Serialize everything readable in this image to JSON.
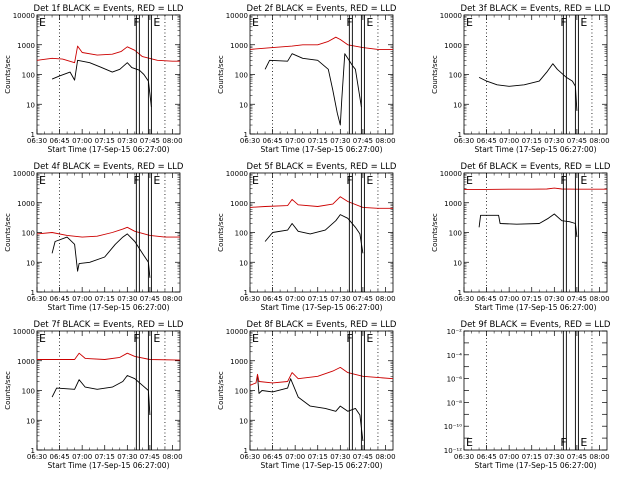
{
  "figure": {
    "xticks": [
      "06:30",
      "06:45",
      "07:00",
      "07:15",
      "07:30",
      "07:45",
      "08:00"
    ],
    "xlabel": "Start Time (17-Sep-15 06:27:00)",
    "ylabel": "Counts/sec",
    "markers": {
      "F": "F",
      "E": "E"
    },
    "colors": {
      "events": "#000000",
      "lld": "#cc0000"
    }
  },
  "chart_data": [
    {
      "type": "line",
      "title": "Det 1f BLACK = Events, RED = LLD",
      "xlabel": "Start Time (17-Sep-15 06:27:00)",
      "ylabel": "Counts/sec",
      "yscale": "log",
      "ylim": [
        1,
        10000
      ],
      "xlim": [
        "06:30",
        "08:05"
      ],
      "yticks": [
        "1",
        "10",
        "100",
        "1000",
        "10000"
      ],
      "series": [
        {
          "name": "Events",
          "color": "#000000",
          "points": [
            [
              "06:40",
              70
            ],
            [
              "06:45",
              90
            ],
            [
              "06:52",
              120
            ],
            [
              "06:55",
              65
            ],
            [
              "06:57",
              300
            ],
            [
              "07:05",
              250
            ],
            [
              "07:12",
              180
            ],
            [
              "07:20",
              120
            ],
            [
              "07:25",
              150
            ],
            [
              "07:30",
              250
            ],
            [
              "07:33",
              170
            ],
            [
              "07:38",
              140
            ],
            [
              "07:41",
              100
            ],
            [
              "07:44",
              60
            ],
            [
              "07:46",
              8
            ]
          ]
        },
        {
          "name": "LLD",
          "color": "#cc0000",
          "points": [
            [
              "06:30",
              300
            ],
            [
              "06:40",
              350
            ],
            [
              "06:47",
              330
            ],
            [
              "06:55",
              250
            ],
            [
              "06:57",
              900
            ],
            [
              "07:00",
              550
            ],
            [
              "07:10",
              450
            ],
            [
              "07:20",
              480
            ],
            [
              "07:26",
              600
            ],
            [
              "07:30",
              850
            ],
            [
              "07:35",
              650
            ],
            [
              "07:40",
              400
            ],
            [
              "07:50",
              300
            ],
            [
              "08:00",
              280
            ],
            [
              "08:05",
              280
            ]
          ]
        }
      ]
    },
    {
      "type": "line",
      "title": "Det 2f BLACK = Events, RED = LLD",
      "xlabel": "Start Time (17-Sep-15 06:27:00)",
      "ylabel": "Counts/sec",
      "yscale": "log",
      "ylim": [
        1,
        10000
      ],
      "xlim": [
        "06:30",
        "08:05"
      ],
      "yticks": [
        "1",
        "10",
        "100",
        "1000",
        "10000"
      ],
      "series": [
        {
          "name": "Events",
          "color": "#000000",
          "points": [
            [
              "06:40",
              150
            ],
            [
              "06:43",
              300
            ],
            [
              "06:55",
              280
            ],
            [
              "06:58",
              500
            ],
            [
              "07:05",
              350
            ],
            [
              "07:15",
              300
            ],
            [
              "07:22",
              150
            ],
            [
              "07:25",
              30
            ],
            [
              "07:28",
              5
            ],
            [
              "07:30",
              2
            ],
            [
              "07:31",
              15
            ],
            [
              "07:33",
              500
            ],
            [
              "07:38",
              200
            ],
            [
              "07:40",
              150
            ],
            [
              "07:44",
              8
            ]
          ]
        },
        {
          "name": "LLD",
          "color": "#cc0000",
          "points": [
            [
              "06:30",
              700
            ],
            [
              "06:45",
              800
            ],
            [
              "06:58",
              900
            ],
            [
              "07:05",
              1000
            ],
            [
              "07:15",
              1000
            ],
            [
              "07:22",
              1300
            ],
            [
              "07:27",
              1800
            ],
            [
              "07:30",
              1500
            ],
            [
              "07:35",
              1000
            ],
            [
              "07:45",
              800
            ],
            [
              "07:55",
              700
            ],
            [
              "08:05",
              700
            ]
          ]
        }
      ]
    },
    {
      "type": "line",
      "title": "Det 3f BLACK = Events, RED = LLD",
      "xlabel": "Start Time (17-Sep-15 06:27:00)",
      "ylabel": "Counts/sec",
      "yscale": "log",
      "ylim": [
        1,
        10000
      ],
      "xlim": [
        "06:30",
        "08:05"
      ],
      "yticks": [
        "1",
        "10",
        "100",
        "1000",
        "10000"
      ],
      "series": [
        {
          "name": "Events",
          "color": "#000000",
          "points": [
            [
              "06:40",
              80
            ],
            [
              "06:45",
              60
            ],
            [
              "06:52",
              45
            ],
            [
              "07:00",
              40
            ],
            [
              "07:10",
              45
            ],
            [
              "07:20",
              60
            ],
            [
              "07:25",
              120
            ],
            [
              "07:29",
              230
            ],
            [
              "07:32",
              150
            ],
            [
              "07:38",
              80
            ],
            [
              "07:42",
              60
            ],
            [
              "07:44",
              40
            ],
            [
              "07:45",
              6
            ]
          ]
        }
      ]
    },
    {
      "type": "line",
      "title": "Det 4f BLACK = Events, RED = LLD",
      "xlabel": "Start Time (17-Sep-15 06:27:00)",
      "ylabel": "Counts/sec",
      "yscale": "log",
      "ylim": [
        1,
        10000
      ],
      "xlim": [
        "06:30",
        "08:05"
      ],
      "yticks": [
        "1",
        "10",
        "100",
        "1000",
        "10000"
      ],
      "series": [
        {
          "name": "Events",
          "color": "#000000",
          "points": [
            [
              "06:40",
              20
            ],
            [
              "06:42",
              50
            ],
            [
              "06:50",
              70
            ],
            [
              "06:55",
              40
            ],
            [
              "06:57",
              5
            ],
            [
              "06:58",
              9
            ],
            [
              "07:05",
              10
            ],
            [
              "07:15",
              15
            ],
            [
              "07:22",
              40
            ],
            [
              "07:27",
              70
            ],
            [
              "07:30",
              90
            ],
            [
              "07:35",
              50
            ],
            [
              "07:40",
              20
            ],
            [
              "07:44",
              10
            ],
            [
              "07:45",
              3
            ]
          ]
        },
        {
          "name": "LLD",
          "color": "#cc0000",
          "points": [
            [
              "06:30",
              90
            ],
            [
              "06:40",
              100
            ],
            [
              "06:50",
              80
            ],
            [
              "07:00",
              70
            ],
            [
              "07:10",
              75
            ],
            [
              "07:20",
              100
            ],
            [
              "07:27",
              130
            ],
            [
              "07:30",
              150
            ],
            [
              "07:35",
              110
            ],
            [
              "07:45",
              80
            ],
            [
              "07:55",
              70
            ],
            [
              "08:05",
              70
            ]
          ]
        }
      ]
    },
    {
      "type": "line",
      "title": "Det 5f BLACK = Events, RED = LLD",
      "xlabel": "Start Time (17-Sep-15 06:27:00)",
      "ylabel": "Counts/sec",
      "yscale": "log",
      "ylim": [
        1,
        10000
      ],
      "xlim": [
        "06:30",
        "08:05"
      ],
      "yticks": [
        "1",
        "10",
        "100",
        "1000",
        "10000"
      ],
      "series": [
        {
          "name": "Events",
          "color": "#000000",
          "points": [
            [
              "06:40",
              50
            ],
            [
              "06:45",
              100
            ],
            [
              "06:55",
              120
            ],
            [
              "06:58",
              200
            ],
            [
              "07:02",
              110
            ],
            [
              "07:10",
              90
            ],
            [
              "07:20",
              120
            ],
            [
              "07:27",
              250
            ],
            [
              "07:30",
              400
            ],
            [
              "07:35",
              300
            ],
            [
              "07:40",
              150
            ],
            [
              "07:43",
              90
            ],
            [
              "07:45",
              20
            ]
          ]
        },
        {
          "name": "LLD",
          "color": "#cc0000",
          "points": [
            [
              "06:30",
              700
            ],
            [
              "06:40",
              750
            ],
            [
              "06:55",
              800
            ],
            [
              "06:58",
              1300
            ],
            [
              "07:02",
              850
            ],
            [
              "07:15",
              750
            ],
            [
              "07:25",
              900
            ],
            [
              "07:30",
              1600
            ],
            [
              "07:35",
              1100
            ],
            [
              "07:45",
              700
            ],
            [
              "07:55",
              650
            ],
            [
              "08:05",
              650
            ]
          ]
        }
      ]
    },
    {
      "type": "line",
      "title": "Det 6f BLACK = Events, RED = LLD",
      "xlabel": "Start Time (17-Sep-15 06:27:00)",
      "ylabel": "Counts/sec",
      "yscale": "log",
      "ylim": [
        1,
        10000
      ],
      "xlim": [
        "06:30",
        "08:05"
      ],
      "yticks": [
        "1",
        "10",
        "100",
        "1000",
        "10000"
      ],
      "series": [
        {
          "name": "Events",
          "color": "#000000",
          "points": [
            [
              "06:40",
              150
            ],
            [
              "06:41",
              380
            ],
            [
              "06:53",
              380
            ],
            [
              "06:54",
              200
            ],
            [
              "07:05",
              190
            ],
            [
              "07:20",
              200
            ],
            [
              "07:26",
              300
            ],
            [
              "07:30",
              420
            ],
            [
              "07:35",
              250
            ],
            [
              "07:40",
              230
            ],
            [
              "07:44",
              200
            ],
            [
              "07:45",
              70
            ]
          ]
        },
        {
          "name": "LLD",
          "color": "#cc0000",
          "points": [
            [
              "06:30",
              2800
            ],
            [
              "06:45",
              2800
            ],
            [
              "07:00",
              2850
            ],
            [
              "07:15",
              2850
            ],
            [
              "07:25",
              2900
            ],
            [
              "07:30",
              3100
            ],
            [
              "07:35",
              2900
            ],
            [
              "07:45",
              2850
            ],
            [
              "08:05",
              2850
            ]
          ]
        }
      ]
    },
    {
      "type": "line",
      "title": "Det 7f BLACK = Events, RED = LLD",
      "xlabel": "Start Time (17-Sep-15 06:27:00)",
      "ylabel": "Counts/sec",
      "yscale": "log",
      "ylim": [
        1,
        10000
      ],
      "xlim": [
        "06:30",
        "08:05"
      ],
      "yticks": [
        "1",
        "10",
        "100",
        "1000",
        "10000"
      ],
      "series": [
        {
          "name": "Events",
          "color": "#000000",
          "points": [
            [
              "06:40",
              60
            ],
            [
              "06:43",
              120
            ],
            [
              "06:55",
              110
            ],
            [
              "06:58",
              230
            ],
            [
              "07:02",
              130
            ],
            [
              "07:10",
              110
            ],
            [
              "07:20",
              130
            ],
            [
              "07:27",
              200
            ],
            [
              "07:30",
              320
            ],
            [
              "07:35",
              250
            ],
            [
              "07:40",
              150
            ],
            [
              "07:44",
              100
            ],
            [
              "07:45",
              15
            ]
          ]
        },
        {
          "name": "LLD",
          "color": "#cc0000",
          "points": [
            [
              "06:30",
              1100
            ],
            [
              "06:45",
              1100
            ],
            [
              "06:55",
              1100
            ],
            [
              "06:58",
              1800
            ],
            [
              "07:02",
              1200
            ],
            [
              "07:15",
              1100
            ],
            [
              "07:25",
              1300
            ],
            [
              "07:30",
              1800
            ],
            [
              "07:35",
              1400
            ],
            [
              "07:45",
              1100
            ],
            [
              "08:05",
              1050
            ]
          ]
        }
      ]
    },
    {
      "type": "line",
      "title": "Det 8f BLACK = Events, RED = LLD",
      "xlabel": "Start Time (17-Sep-15 06:27:00)",
      "ylabel": "Counts/sec",
      "yscale": "log",
      "ylim": [
        1,
        10000
      ],
      "xlim": [
        "06:30",
        "08:05"
      ],
      "yticks": [
        "1",
        "10",
        "100",
        "1000",
        "10000"
      ],
      "series": [
        {
          "name": "Events",
          "color": "#000000",
          "points": [
            [
              "06:35",
              300
            ],
            [
              "06:36",
              80
            ],
            [
              "06:38",
              100
            ],
            [
              "06:45",
              90
            ],
            [
              "06:55",
              120
            ],
            [
              "06:57",
              250
            ],
            [
              "07:02",
              60
            ],
            [
              "07:10",
              30
            ],
            [
              "07:20",
              25
            ],
            [
              "07:27",
              20
            ],
            [
              "07:30",
              30
            ],
            [
              "07:35",
              20
            ],
            [
              "07:40",
              25
            ],
            [
              "07:43",
              15
            ],
            [
              "07:45",
              2
            ]
          ]
        },
        {
          "name": "LLD",
          "color": "#cc0000",
          "points": [
            [
              "06:30",
              150
            ],
            [
              "06:34",
              180
            ],
            [
              "06:35",
              350
            ],
            [
              "06:36",
              200
            ],
            [
              "06:45",
              180
            ],
            [
              "06:55",
              200
            ],
            [
              "06:58",
              400
            ],
            [
              "07:02",
              250
            ],
            [
              "07:15",
              300
            ],
            [
              "07:25",
              450
            ],
            [
              "07:30",
              600
            ],
            [
              "07:35",
              400
            ],
            [
              "07:45",
              300
            ],
            [
              "08:05",
              250
            ]
          ]
        }
      ]
    },
    {
      "type": "line",
      "title": "Det 9f BLACK = Events, RED = LLD",
      "xlabel": "Start Time (17-Sep-15 06:27:00)",
      "ylabel": "",
      "yscale": "log",
      "ylim": [
        1e-12,
        0.01
      ],
      "xlim": [
        "06:30",
        "08:05"
      ],
      "yticks": [
        "10⁻¹²",
        "10⁻¹⁰",
        "10⁻⁸",
        "10⁻⁶",
        "10⁻⁴",
        "10⁻²"
      ],
      "series": []
    }
  ]
}
